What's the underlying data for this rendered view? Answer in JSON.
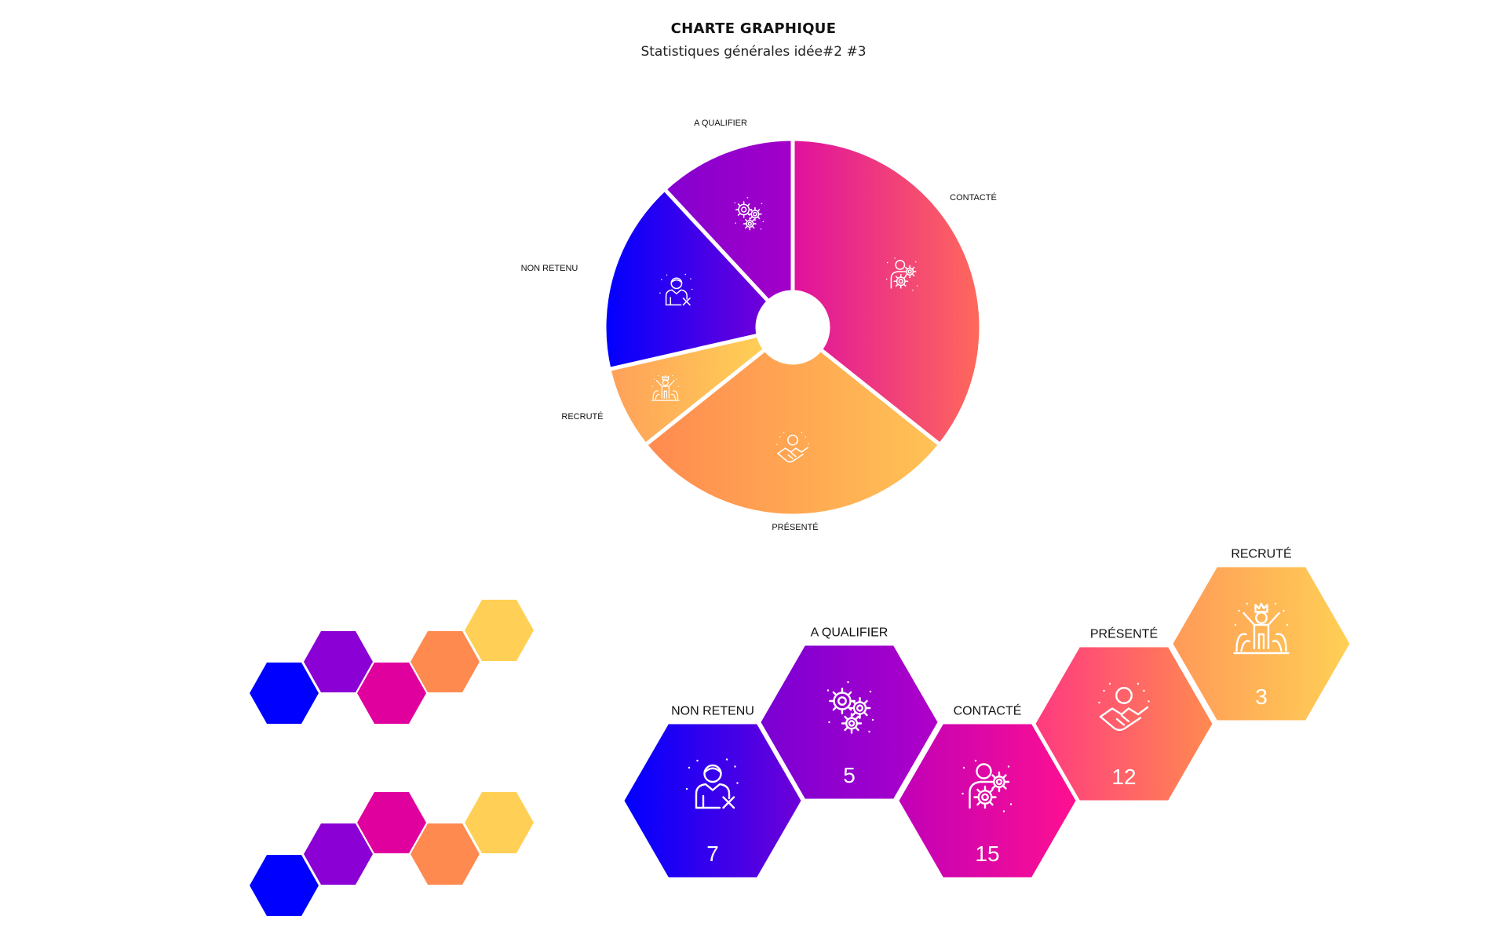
{
  "header": {
    "title": "CHARTE GRAPHIQUE",
    "subtitle": "Statistiques générales idée#2 #3"
  },
  "colors": {
    "blue": "#0000FF",
    "purple": "#8B00D4",
    "magenta": "#E0009E",
    "pink": "#FF3B7F",
    "orange": "#FF8A50",
    "yellow": "#FFD055"
  },
  "chart_data": [
    {
      "type": "pie",
      "variant": "donut",
      "categories": [
        "CONTACTÉ",
        "PRÉSENTÉ",
        "RECRUTÉ",
        "NON RETENU",
        "A QUALIFIER"
      ],
      "values": [
        15,
        12,
        3,
        7,
        5
      ],
      "icons": [
        "person-gears-icon",
        "handshake-icon",
        "celebration-icon",
        "person-reject-icon",
        "gears-icon"
      ],
      "gradients": [
        [
          "#E0109E",
          "#FF6A5A"
        ],
        [
          "#FF8A50",
          "#FFC355"
        ],
        [
          "#FFA05A",
          "#FFD055"
        ],
        [
          "#0000FF",
          "#7300D8"
        ],
        [
          "#8500D0",
          "#A200C8"
        ]
      ]
    },
    {
      "type": "table",
      "variant": "hexagon-values",
      "categories": [
        "NON RETENU",
        "A QUALIFIER",
        "CONTACTÉ",
        "PRÉSENTÉ",
        "RECRUTÉ"
      ],
      "values": [
        7,
        5,
        15,
        12,
        3
      ],
      "icons": [
        "person-reject-icon",
        "gears-icon",
        "person-gears-icon",
        "handshake-icon",
        "celebration-icon"
      ],
      "gradients": [
        [
          "#0000FF",
          "#6E00D8"
        ],
        [
          "#7A00D4",
          "#B000C8"
        ],
        [
          "#C000B8",
          "#FF1090"
        ],
        [
          "#FF3A80",
          "#FF8A50"
        ],
        [
          "#FF9A58",
          "#FFD055"
        ]
      ]
    }
  ],
  "palette_rows": [
    [
      "#0000FF",
      "#8B00D4",
      "#E0009E",
      "#FF8A50",
      "#FFD055"
    ],
    [
      "#0000FF",
      "#8B00D4",
      "#E0009E",
      "#FF8A50",
      "#FFD055"
    ]
  ]
}
